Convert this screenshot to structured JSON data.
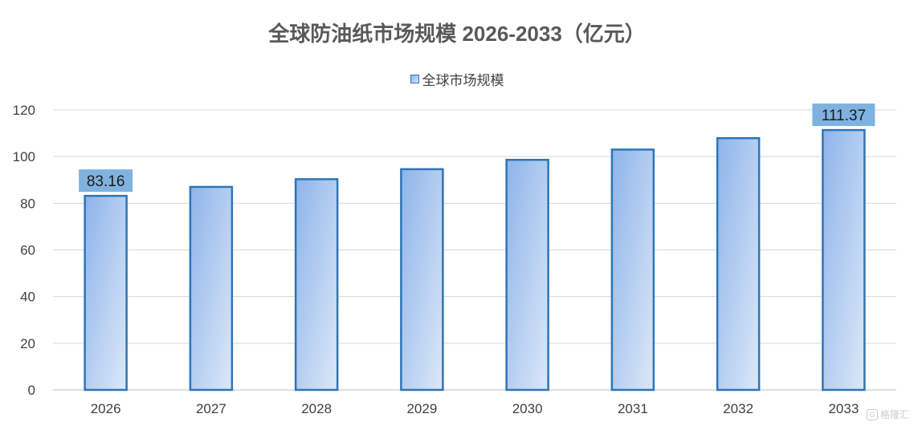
{
  "chart_data": {
    "type": "bar",
    "title": "全球防油纸市场规模 2026-2033（亿元）",
    "categories": [
      "2026",
      "2027",
      "2028",
      "2029",
      "2030",
      "2031",
      "2032",
      "2033"
    ],
    "series": [
      {
        "name": "全球市场规模",
        "values": [
          83.16,
          87.0,
          90.3,
          94.6,
          98.6,
          103.0,
          107.9,
          111.37
        ]
      }
    ],
    "data_labels": [
      {
        "category": "2026",
        "text": "83.16"
      },
      {
        "category": "2033",
        "text": "111.37"
      }
    ],
    "ylim": [
      0,
      120
    ],
    "yticks": [
      0,
      20,
      40,
      60,
      80,
      100,
      120
    ],
    "grid": true,
    "legend_position": "top-center"
  },
  "colors": {
    "bar_border": "#2e75b6",
    "bar_fill_start": "#8db4ea",
    "bar_fill_end": "#dce8f8",
    "label_bg": "#7fb2e0",
    "grid": "#d9d9d9",
    "axis_text": "#404040",
    "title_text": "#595959"
  },
  "watermark": {
    "icon": "brand-logo-icon",
    "text": "格隆汇"
  }
}
